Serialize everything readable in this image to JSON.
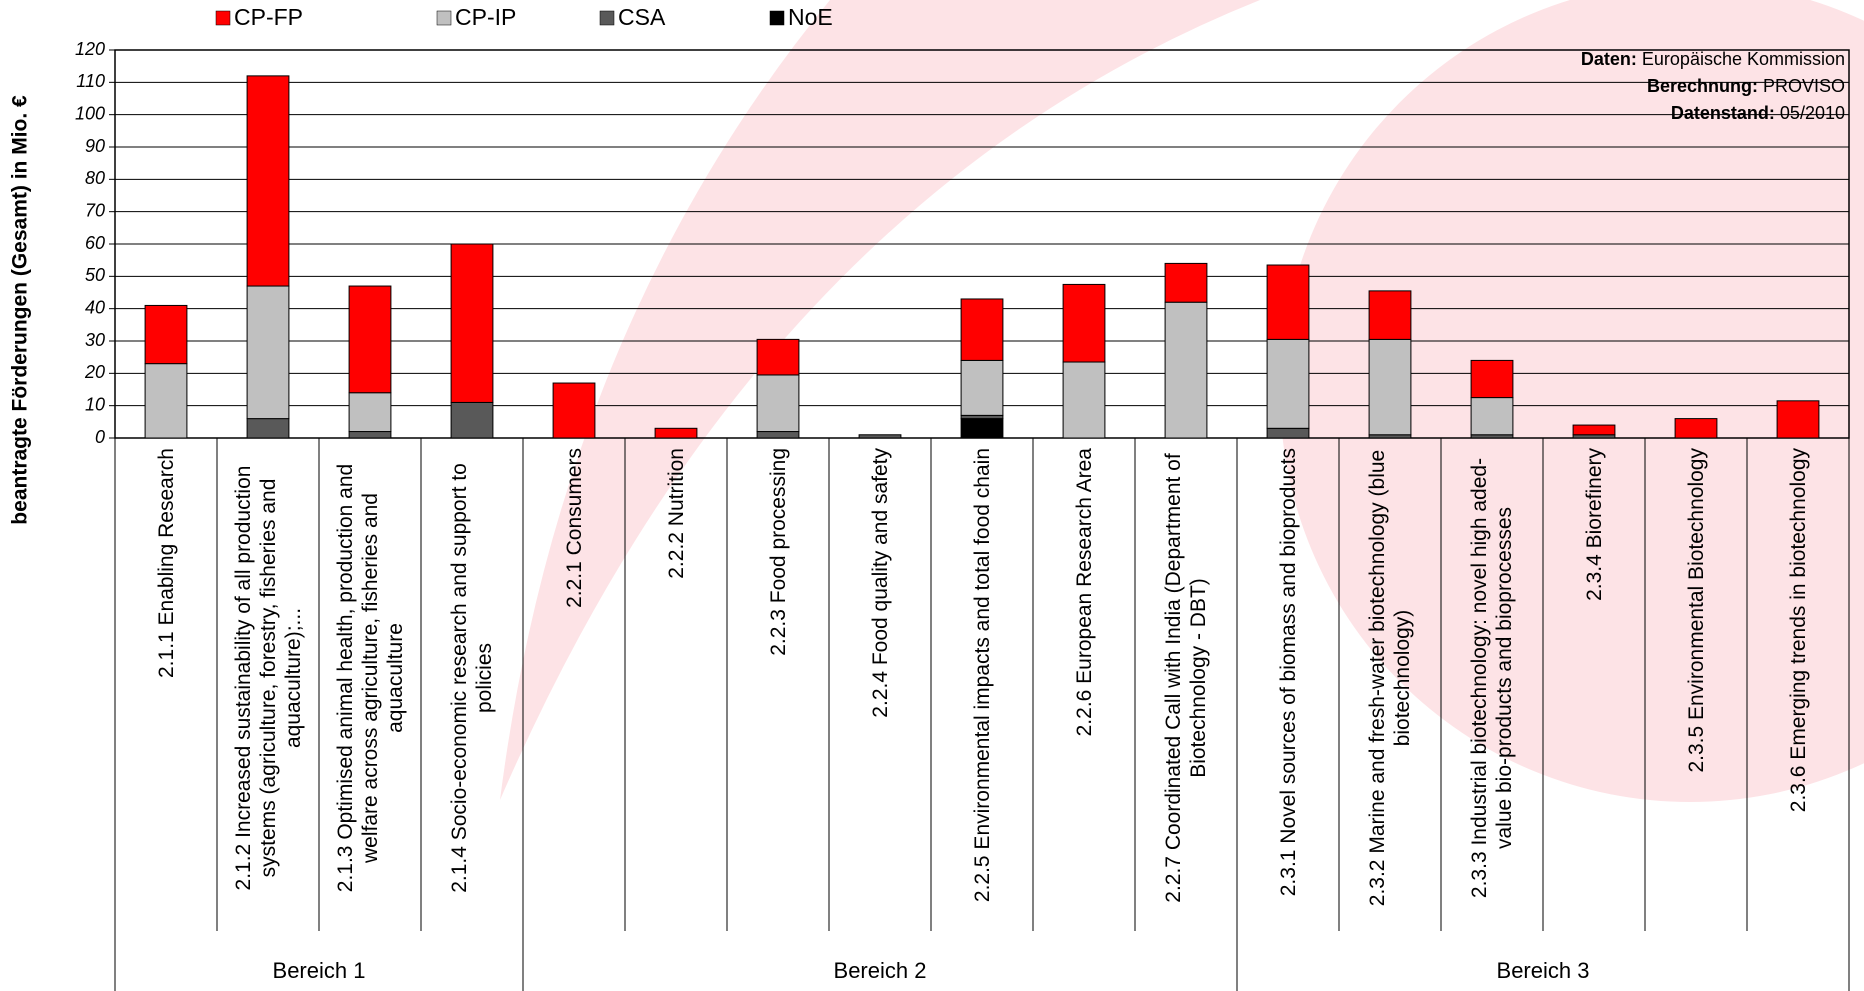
{
  "chart_data": {
    "type": "stacked_bar",
    "y_label": "beantragte Förderungen (Gesamt) in Mio. €",
    "groups": [
      {
        "name": "Bereich 1",
        "categories": [
          "2.1.1 Enabling Research",
          "2.1.2 Increased sustainability of all production systems (agriculture, forestry, fisheries and aquaculture);...",
          "2.1.3 Optimised animal health, production and welfare across agriculture, fisheries and aquaculture",
          "2.1.4 Socio-economic research and support to policies"
        ]
      },
      {
        "name": "Bereich 2",
        "categories": [
          "2.2.1 Consumers",
          "2.2.2 Nutrition",
          "2.2.3 Food processing",
          "2.2.4 Food quality and safety",
          "2.2.5 Environmental impacts and total food chain",
          "2.2.6 European Research Area",
          "2.2.7 Coordinated Call with India (Department of Biotechnology - DBT)"
        ]
      },
      {
        "name": "Bereich 3",
        "categories": [
          "2.3.1 Novel sources of biomass and bioproducts",
          "2.3.2 Marine and fresh-water biotechnology (blue biotechnology)",
          "2.3.3 Industrial biotechnology: novel high aded-value bio-products and bioprocesses",
          "2.3.4 Biorefinery",
          "2.3.5 Environmental Biotechnology",
          "2.3.6 Emerging trends in biotechnology"
        ]
      }
    ],
    "series": [
      {
        "name": "CP-FP",
        "color": "#ff0000",
        "values": [
          18,
          65,
          33,
          49,
          17,
          3,
          11,
          0,
          19,
          24,
          12,
          23,
          15,
          11.5,
          3,
          6,
          11.5
        ]
      },
      {
        "name": "CP-IP",
        "color": "#c0c0c0",
        "values": [
          23,
          41,
          12,
          0,
          0,
          0,
          17.5,
          0,
          17,
          23.5,
          42,
          27.5,
          29.5,
          11.5,
          0,
          0,
          0
        ]
      },
      {
        "name": "CSA",
        "color": "#595959",
        "values": [
          0,
          6,
          2,
          11,
          0,
          0,
          2,
          1,
          1,
          0,
          0,
          3,
          1,
          1,
          1,
          0,
          0
        ]
      },
      {
        "name": "NoE",
        "color": "#000000",
        "values": [
          0,
          0,
          0,
          0,
          0,
          0,
          0,
          0,
          6,
          0,
          0,
          0,
          0,
          0,
          0,
          0,
          0
        ]
      }
    ],
    "ylim": [
      0,
      120
    ],
    "yticks": [
      0,
      10,
      20,
      30,
      40,
      50,
      60,
      70,
      80,
      90,
      100,
      110,
      120
    ],
    "grid": true,
    "annotations": [
      {
        "label": "Daten:",
        "text": "Europäische Kommission"
      },
      {
        "label": "Berechnung:",
        "text": "PROVISO"
      },
      {
        "label": "Datenstand:",
        "text": "05/2010"
      }
    ]
  }
}
